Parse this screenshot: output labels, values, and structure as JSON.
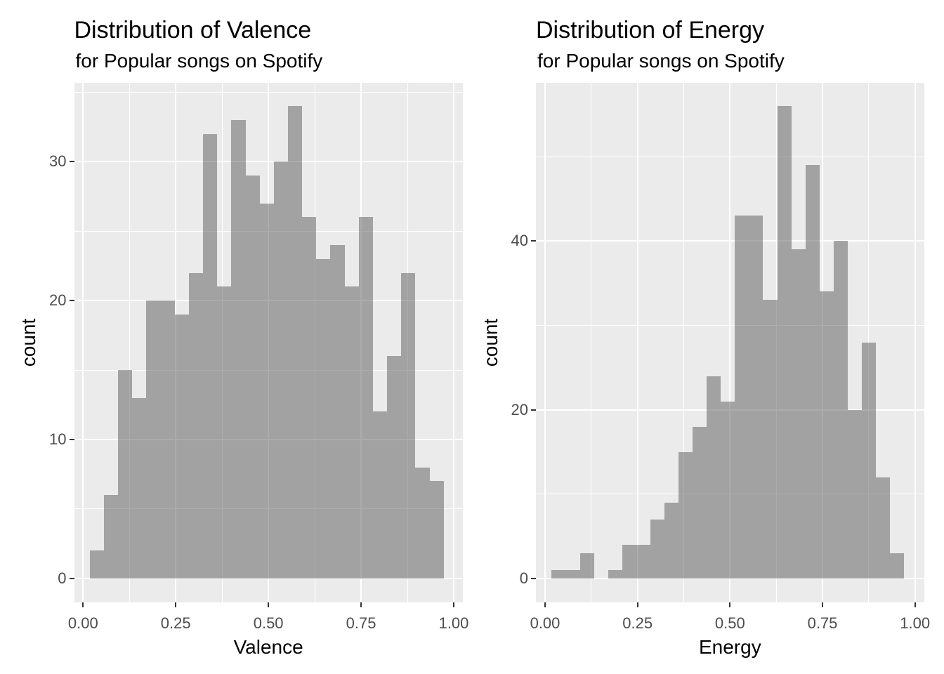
{
  "style": {
    "background": "#FFFFFF",
    "panel_bg": "#EBEBEB",
    "grid_color": "#FFFFFF",
    "bar_rgba": "rgba(89,89,89,0.5)",
    "bar_base_hex": "#595959",
    "bar_opacity": 0.5,
    "axis_text_color": "#4D4D4D",
    "tick_mark_color": "#333333",
    "title_color": "#000000"
  },
  "chart_data": [
    {
      "type": "bar",
      "subtype": "histogram",
      "title": "Distribution of Valence",
      "subtitle": "for Popular songs on Spotify",
      "xlabel": "Valence",
      "ylabel": "count",
      "bin_start": 0.018,
      "bin_width": 0.0382,
      "counts": [
        2,
        6,
        15,
        13,
        20,
        20,
        19,
        22,
        32,
        21,
        33,
        29,
        27,
        30,
        34,
        26,
        23,
        24,
        21,
        26,
        12,
        16,
        22,
        8,
        7
      ],
      "x_tick_labels": [
        "0.00",
        "0.25",
        "0.50",
        "0.75",
        "1.00"
      ],
      "x_tick_values": [
        0,
        0.25,
        0.5,
        0.75,
        1.0
      ],
      "x_minor_values": [
        0.125,
        0.375,
        0.625,
        0.875
      ],
      "y_tick_labels": [
        "0",
        "10",
        "20",
        "30"
      ],
      "y_tick_values": [
        0,
        10,
        20,
        30
      ],
      "y_minor_values": [
        5,
        15,
        25,
        35
      ],
      "ylim_max_data": 34,
      "xlim": [
        0,
        1
      ],
      "grid": "on",
      "legend": "none"
    },
    {
      "type": "bar",
      "subtype": "histogram",
      "title": "Distribution of Energy",
      "subtitle": "for Popular songs on Spotify",
      "xlabel": "Energy",
      "ylabel": "count",
      "bin_start": 0.018,
      "bin_width": 0.0381,
      "counts": [
        1,
        1,
        3,
        0,
        1,
        4,
        4,
        7,
        9,
        15,
        18,
        24,
        21,
        43,
        43,
        33,
        56,
        39,
        49,
        34,
        40,
        20,
        28,
        12,
        3
      ],
      "x_tick_labels": [
        "0.00",
        "0.25",
        "0.50",
        "0.75",
        "1.00"
      ],
      "x_tick_values": [
        0,
        0.25,
        0.5,
        0.75,
        1.0
      ],
      "x_minor_values": [
        0.125,
        0.375,
        0.625,
        0.875
      ],
      "y_tick_labels": [
        "0",
        "20",
        "40"
      ],
      "y_tick_values": [
        0,
        20,
        40
      ],
      "y_minor_values": [
        10,
        30,
        50
      ],
      "ylim_max_data": 56,
      "xlim": [
        0,
        1
      ],
      "grid": "on",
      "legend": "none"
    }
  ]
}
